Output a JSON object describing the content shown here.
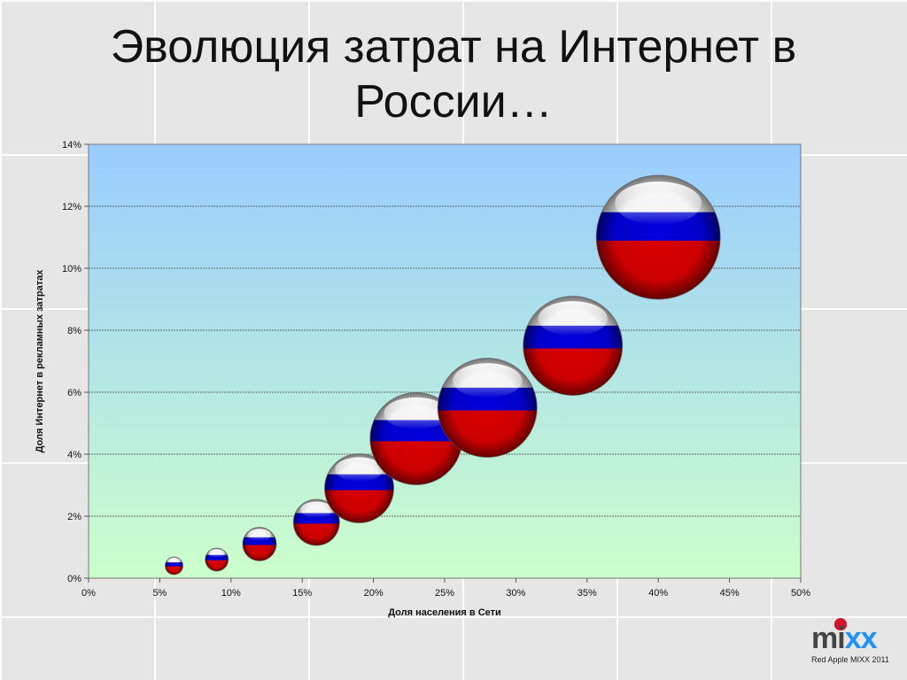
{
  "slide": {
    "title_line1": "Эволюция затрат на Интернет в",
    "title_line2": "России…"
  },
  "logo": {
    "word_m": "mi",
    "word_xx": "xx",
    "subtitle": "Red Apple MIXX 2011"
  },
  "chart_data": {
    "type": "scatter",
    "title": "Эволюция затрат на Интернет в России…",
    "xlabel": "Доля населения в Сети",
    "ylabel": "Доля Интернет в рекламных затратах",
    "xlim": [
      0,
      50
    ],
    "ylim": [
      0,
      14
    ],
    "x_ticks": [
      "0%",
      "5%",
      "10%",
      "15%",
      "20%",
      "25%",
      "30%",
      "35%",
      "40%",
      "45%",
      "50%"
    ],
    "y_ticks": [
      "0%",
      "2%",
      "4%",
      "6%",
      "8%",
      "10%",
      "12%",
      "14%"
    ],
    "grid": "horizontal",
    "legend": "none",
    "marker": "russian-flag-sphere",
    "points": [
      {
        "x": 6,
        "y": 0.4,
        "size": 1
      },
      {
        "x": 9,
        "y": 0.6,
        "size": 1.3
      },
      {
        "x": 12,
        "y": 1.1,
        "size": 1.9
      },
      {
        "x": 16,
        "y": 1.8,
        "size": 2.6
      },
      {
        "x": 19,
        "y": 2.9,
        "size": 3.9
      },
      {
        "x": 23,
        "y": 4.5,
        "size": 5.2
      },
      {
        "x": 28,
        "y": 5.5,
        "size": 5.6
      },
      {
        "x": 34,
        "y": 7.5,
        "size": 5.6
      },
      {
        "x": 40,
        "y": 11.0,
        "size": 7.0
      }
    ],
    "colors": {
      "plot_top": "#99ccff",
      "plot_bottom": "#ccffcc",
      "flag_white": "#ffffff",
      "flag_blue": "#0000dd",
      "flag_red": "#dd0000",
      "gridline": "#444444"
    }
  }
}
